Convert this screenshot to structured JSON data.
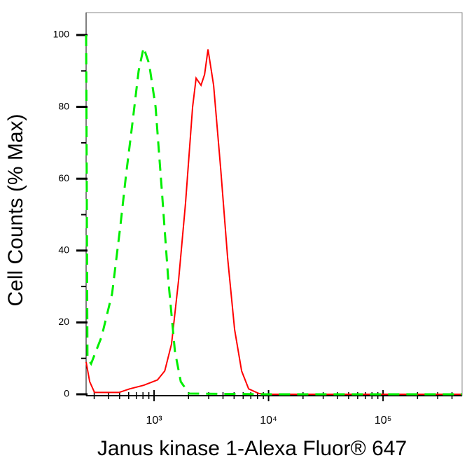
{
  "chart_data": {
    "type": "line",
    "x_label": "Janus kinase 1-Alexa Fluor® 647",
    "y_label": "Cell Counts (% Max)",
    "xscale": "log",
    "xlim": [
      255,
      490000
    ],
    "ylim": [
      0,
      100
    ],
    "xticks": [
      {
        "value": 1000,
        "label": "10³"
      },
      {
        "value": 10000,
        "label": "10⁴"
      },
      {
        "value": 100000,
        "label": "10⁵"
      }
    ],
    "xminorticks": [
      300,
      400,
      500,
      600,
      700,
      800,
      900,
      2000,
      3000,
      4000,
      5000,
      6000,
      7000,
      8000,
      9000,
      20000,
      30000,
      40000,
      50000,
      60000,
      70000,
      80000,
      90000,
      200000,
      300000,
      400000
    ],
    "yticks": [
      0,
      20,
      40,
      60,
      80,
      100
    ],
    "yminorticks": [
      10,
      30,
      50,
      70,
      90
    ],
    "series": [
      {
        "color": "#ff0000",
        "line_style": "solid",
        "x": [
          255,
          274,
          302,
          494,
          611,
          810,
          1070,
          1240,
          1420,
          1640,
          1880,
          2170,
          2330,
          2570,
          2760,
          2960,
          3310,
          3810,
          4390,
          5050,
          5820,
          6700,
          8260,
          10000,
          100000,
          490000
        ],
        "values": [
          9,
          3.5,
          0.5,
          0.5,
          1.5,
          2.5,
          4,
          6.5,
          14,
          32,
          53,
          80,
          88,
          86,
          89,
          96,
          86,
          63,
          38,
          18,
          6.5,
          1.5,
          0.2,
          0,
          0,
          0
        ]
      },
      {
        "color": "#00ee00",
        "line_style": "dashed",
        "x": [
          255,
          262,
          282,
          348,
          430,
          508,
          569,
          656,
          733,
          810,
          906,
          1030,
          1180,
          1330,
          1520,
          1710,
          2020,
          10000,
          100000,
          490000
        ],
        "values": [
          100,
          10,
          8.5,
          16,
          28,
          47,
          61,
          77,
          90,
          96.5,
          92,
          80,
          55,
          32,
          12,
          3.5,
          0.2,
          0,
          0,
          0
        ]
      }
    ]
  }
}
